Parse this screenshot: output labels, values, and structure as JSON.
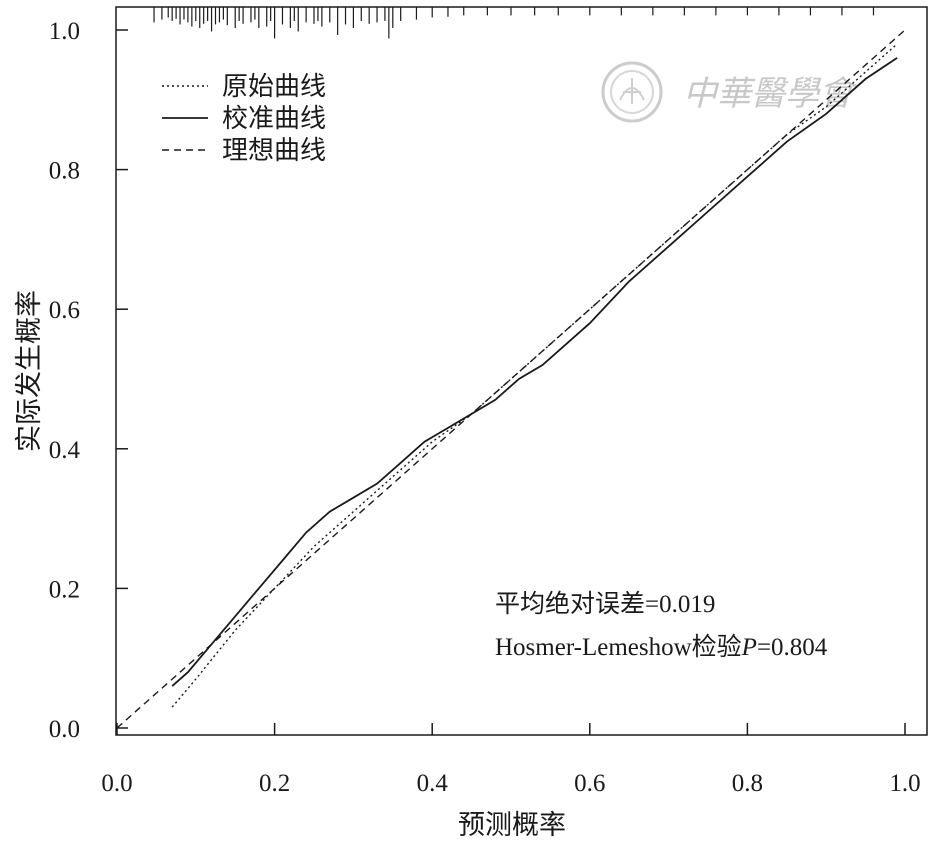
{
  "chart_data": {
    "type": "line",
    "xlabel": "预测概率",
    "ylabel": "实际发生概率",
    "xlim": [
      0.0,
      1.0
    ],
    "ylim": [
      0.0,
      1.0
    ],
    "xticks": [
      "0.0",
      "0.2",
      "0.4",
      "0.6",
      "0.8",
      "1.0"
    ],
    "yticks": [
      "0.0",
      "0.2",
      "0.4",
      "0.6",
      "0.8",
      "1.0"
    ],
    "grid": false,
    "legend_position": "top-left",
    "series": [
      {
        "name": "原始曲线",
        "style": "dotted",
        "x": [
          0.07,
          0.1,
          0.15,
          0.2,
          0.25,
          0.3,
          0.35,
          0.4,
          0.45,
          0.5,
          0.55,
          0.6,
          0.65,
          0.7,
          0.75,
          0.8,
          0.85,
          0.9,
          0.95,
          0.99
        ],
        "y": [
          0.03,
          0.07,
          0.14,
          0.2,
          0.26,
          0.31,
          0.36,
          0.41,
          0.45,
          0.5,
          0.55,
          0.6,
          0.65,
          0.7,
          0.75,
          0.8,
          0.85,
          0.89,
          0.94,
          0.98
        ]
      },
      {
        "name": "校准曲线",
        "style": "solid",
        "x": [
          0.07,
          0.09,
          0.12,
          0.15,
          0.18,
          0.21,
          0.24,
          0.27,
          0.3,
          0.33,
          0.36,
          0.39,
          0.42,
          0.45,
          0.48,
          0.51,
          0.54,
          0.57,
          0.6,
          0.65,
          0.7,
          0.75,
          0.8,
          0.85,
          0.9,
          0.95,
          0.99
        ],
        "y": [
          0.06,
          0.08,
          0.12,
          0.16,
          0.2,
          0.24,
          0.28,
          0.31,
          0.33,
          0.35,
          0.38,
          0.41,
          0.43,
          0.45,
          0.47,
          0.5,
          0.52,
          0.55,
          0.58,
          0.64,
          0.69,
          0.74,
          0.79,
          0.84,
          0.88,
          0.93,
          0.96
        ]
      },
      {
        "name": "理想曲线",
        "style": "dashed",
        "x": [
          0.0,
          1.0
        ],
        "y": [
          0.0,
          1.0
        ]
      }
    ],
    "rug_x": [
      0.047,
      0.057,
      0.065,
      0.07,
      0.075,
      0.08,
      0.085,
      0.09,
      0.095,
      0.1,
      0.105,
      0.11,
      0.115,
      0.12,
      0.125,
      0.13,
      0.135,
      0.14,
      0.15,
      0.155,
      0.16,
      0.17,
      0.175,
      0.18,
      0.19,
      0.195,
      0.2,
      0.21,
      0.22,
      0.225,
      0.23,
      0.24,
      0.25,
      0.255,
      0.26,
      0.27,
      0.28,
      0.29,
      0.3,
      0.31,
      0.32,
      0.33,
      0.34,
      0.345,
      0.35,
      0.36,
      0.38,
      0.4,
      0.42,
      0.44,
      0.47,
      0.5,
      0.53,
      0.56,
      0.6,
      0.64,
      0.68,
      0.72,
      0.76,
      0.8,
      0.84,
      0.88,
      0.92,
      0.96
    ],
    "rug_len": [
      0.022,
      0.018,
      0.015,
      0.02,
      0.017,
      0.025,
      0.018,
      0.022,
      0.028,
      0.02,
      0.03,
      0.024,
      0.02,
      0.035,
      0.025,
      0.022,
      0.018,
      0.026,
      0.03,
      0.02,
      0.024,
      0.022,
      0.018,
      0.03,
      0.028,
      0.02,
      0.045,
      0.025,
      0.03,
      0.02,
      0.035,
      0.022,
      0.024,
      0.02,
      0.028,
      0.022,
      0.04,
      0.025,
      0.03,
      0.02,
      0.024,
      0.022,
      0.02,
      0.045,
      0.03,
      0.02,
      0.018,
      0.015,
      0.014,
      0.012,
      0.012,
      0.012,
      0.012,
      0.012,
      0.012,
      0.012,
      0.012,
      0.012,
      0.012,
      0.012,
      0.012,
      0.012,
      0.012,
      0.012
    ],
    "annotations": {
      "mae_label": "平均绝对误差=0.019",
      "hl_prefix": "Hosmer-Lemeshow检验",
      "hl_p": "P",
      "hl_suffix": "=0.804"
    },
    "watermark": {
      "text": "中華醫學會",
      "seal_icon": "society-seal-icon",
      "color": "#c8c8c8"
    }
  }
}
